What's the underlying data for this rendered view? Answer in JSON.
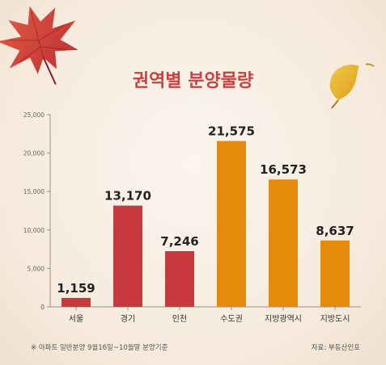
{
  "title": "권역별 분양물량",
  "footnote": "※ 아파트 일반분양 9월16일~10월말 분양기준",
  "source": "자료: 부동산인포",
  "colors": {
    "background": "#f6ece0",
    "title": "#cf3f3f",
    "bar_red": "#c8393d",
    "bar_orange": "#e68a0b",
    "axis_text": "#666666",
    "grid": "#bfb5aa"
  },
  "decorations": [
    "maple-leaf-icon",
    "ginkgo-leaf-icon"
  ],
  "chart_data": {
    "type": "bar",
    "title": "권역별 분양물량",
    "categories": [
      "서울",
      "경기",
      "인천",
      "수도권",
      "지방광역시",
      "지방도시"
    ],
    "values": [
      1159,
      13170,
      7246,
      21575,
      16573,
      8637
    ],
    "value_labels": [
      "1,159",
      "13,170",
      "7,246",
      "21,575",
      "16,573",
      "8,637"
    ],
    "bar_colors": [
      "#c8393d",
      "#c8393d",
      "#c8393d",
      "#e68a0b",
      "#e68a0b",
      "#e68a0b"
    ],
    "ylim": [
      0,
      25000
    ],
    "yticks": [
      0,
      5000,
      10000,
      15000,
      20000,
      25000
    ],
    "ytick_labels": [
      "0",
      "5,000",
      "10,000",
      "15,000",
      "20,000",
      "25,000"
    ],
    "grid": false,
    "xlabel": "",
    "ylabel": ""
  }
}
